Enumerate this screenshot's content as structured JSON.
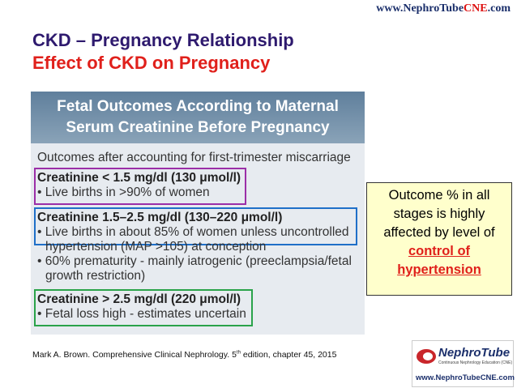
{
  "header": {
    "site": [
      "www.NephroTube",
      "CNE",
      ".com"
    ],
    "title": "CKD – Pregnancy Relationship",
    "subtitle": "Effect of CKD on Pregnancy"
  },
  "figure": {
    "heading": [
      "Fetal Outcomes According to Maternal",
      "Serum Creatinine Before Pregnancy"
    ],
    "intro": "Outcomes after accounting for first-trimester miscarriage",
    "groups": [
      {
        "title": "Creatinine < 1.5 mg/dl (130 μmol/l)",
        "lines": [
          "• Live births in >90% of women"
        ]
      },
      {
        "title": "Creatinine 1.5–2.5 mg/dl (130–220 μmol/l)",
        "lines": [
          "• Live births in about 85% of women unless uncontrolled",
          "hypertension (MAP >105) at conception",
          "• 60% prematurity - mainly iatrogenic (preeclampsia/fetal",
          "growth restriction)"
        ]
      },
      {
        "title": "Creatinine > 2.5 mg/dl (220 μmol/l)",
        "lines": [
          "• Fetal loss high - estimates uncertain"
        ]
      }
    ]
  },
  "callout": {
    "text": "Outcome % in all stages is highly affected by level of",
    "emphasis": "control of hypertension"
  },
  "citation": [
    "Mark A. Brown. Comprehensive Clinical Nephrology. 5",
    "th",
    " edition, chapter 45, 2015"
  ],
  "logo": {
    "name": "NephroTube",
    "tagline": "Continuous Nephrology Education (CNE)",
    "url": "www.NephroTubeCNE.com"
  }
}
